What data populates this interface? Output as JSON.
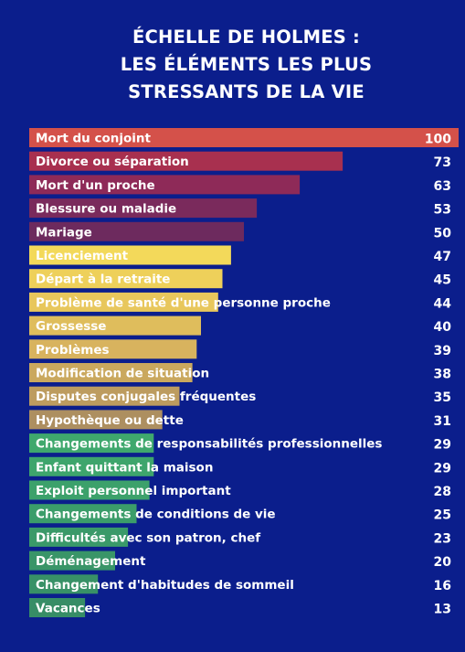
{
  "title_lines": [
    "ÉCHELLE DE HOLMES :",
    "LES ÉLÉMENTS LES PLUS",
    "STRESSANTS DE LA VIE"
  ],
  "chart_data": {
    "type": "bar",
    "orientation": "horizontal",
    "title": "ÉCHELLE DE HOLMES : LES ÉLÉMENTS LES PLUS STRESSANTS DE LA VIE",
    "categories": [
      "Mort du conjoint",
      "Divorce ou séparation",
      "Mort d'un proche",
      "Blessure ou maladie",
      "Mariage",
      "Licenciement",
      "Départ à la retraite",
      "Problème de santé d'une personne proche",
      "Grossesse",
      "Problèmes",
      "Modification de situation",
      "Disputes conjugales fréquentes",
      "Hypothèque ou dette",
      "Changements de responsabilités professionnelles",
      "Enfant quittant la maison",
      "Exploit personnel important",
      "Changements de conditions de vie",
      "Difficultés avec son patron, chef",
      "Déménagement",
      "Changement d'habitudes de sommeil",
      "Vacances"
    ],
    "values": [
      100,
      73,
      63,
      53,
      50,
      47,
      45,
      44,
      40,
      39,
      38,
      35,
      31,
      29,
      29,
      28,
      25,
      23,
      20,
      16,
      13
    ],
    "colors": [
      "#d4514a",
      "#a8304f",
      "#8e2a58",
      "#7a2a5c",
      "#6d2a5e",
      "#f3d95a",
      "#eed05a",
      "#e8c75c",
      "#dfbd5c",
      "#d8b35e",
      "#caa85e",
      "#bd9c5f",
      "#ad8f60",
      "#3fa86d",
      "#3ea56c",
      "#3ca16b",
      "#3b9d6a",
      "#3a9969",
      "#399568",
      "#389167",
      "#378d66"
    ],
    "xlim": [
      0,
      100
    ],
    "grid": false,
    "legend": "none"
  }
}
